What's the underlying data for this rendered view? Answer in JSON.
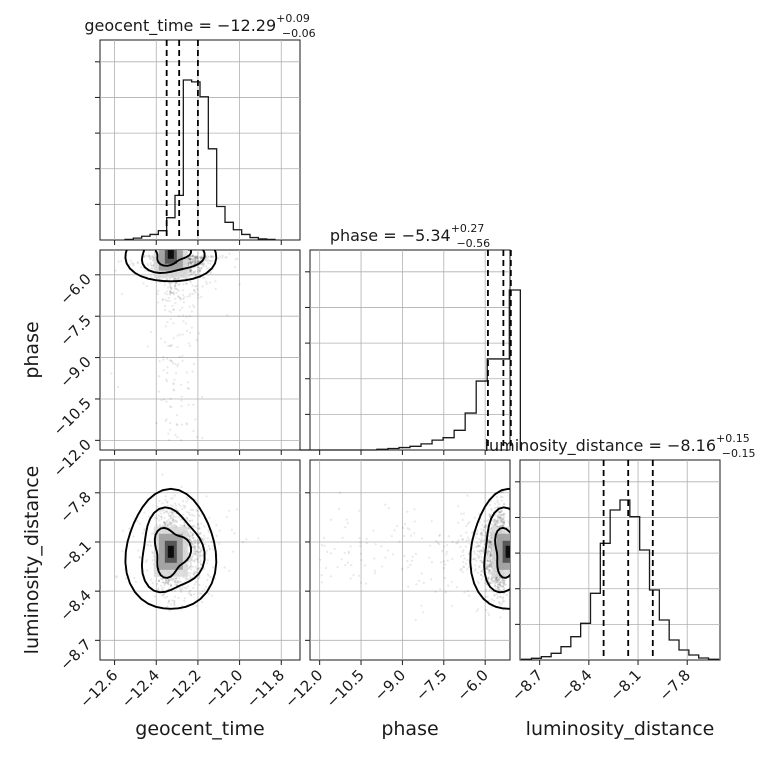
{
  "chart_data": {
    "type": "corner",
    "parameters": [
      {
        "name": "geocent_time",
        "axis_label": "geocent_time",
        "title_prefix": "geocent_time = ",
        "median": "−12.29",
        "upper": "+0.09",
        "lower": "−0.06",
        "range": [
          -12.67,
          -11.71
        ],
        "ticks": [
          -12.6,
          -12.4,
          -12.2,
          -12.0,
          -11.8
        ],
        "tick_labels": [
          "−12.6",
          "−12.4",
          "−12.2",
          "−12.0",
          "−11.8"
        ],
        "quantiles": [
          -12.35,
          -12.29,
          -12.2
        ],
        "hist_bin_width": 0.04,
        "hist_counts": [
          0.3,
          1,
          2,
          3,
          5,
          12,
          24,
          86,
          85,
          77,
          49,
          18,
          9.5,
          5.5,
          3,
          1.3,
          0.6,
          0.3
        ]
      },
      {
        "name": "phase",
        "axis_label": "phase",
        "title_prefix": "phase = ",
        "median": "−5.34",
        "upper": "+0.27",
        "lower": "−0.56",
        "range": [
          -12.35,
          -5.1
        ],
        "ticks": [
          -12.0,
          -10.5,
          -9.0,
          -7.5,
          -6.0
        ],
        "tick_labels": [
          "−12.0",
          "−10.5",
          "−9.0",
          "−7.5",
          "−6.0"
        ],
        "quantiles": [
          -5.9,
          -5.34,
          -5.07
        ],
        "hist_bin_width": 0.4,
        "hist_counts": [
          0,
          0,
          0,
          0,
          0,
          0,
          0,
          0.3,
          0.6,
          1,
          1.5,
          2.5,
          4,
          5,
          8,
          15,
          28,
          37,
          37,
          65
        ]
      },
      {
        "name": "luminosity_distance",
        "axis_label": "luminosity_distance",
        "title_prefix": "luminosity_distance = ",
        "median": "−8.16",
        "upper": "+0.15",
        "lower": "−0.15",
        "range": [
          -8.82,
          -7.6
        ],
        "ticks": [
          -8.7,
          -8.4,
          -8.1,
          -7.8
        ],
        "tick_labels": [
          "−8.7",
          "−8.4",
          "−8.1",
          "−7.8"
        ],
        "quantiles": [
          -8.31,
          -8.16,
          -8.01
        ],
        "hist_bin_width": 0.06,
        "hist_counts": [
          0.2,
          0.5,
          1,
          2,
          4,
          7,
          11,
          20,
          35,
          45,
          48,
          43,
          33,
          21,
          12,
          6,
          3,
          1.5,
          0.6,
          0.2
        ]
      }
    ],
    "hist_ymax_factor": 1.25,
    "density_ticks": 5,
    "grid": true
  }
}
